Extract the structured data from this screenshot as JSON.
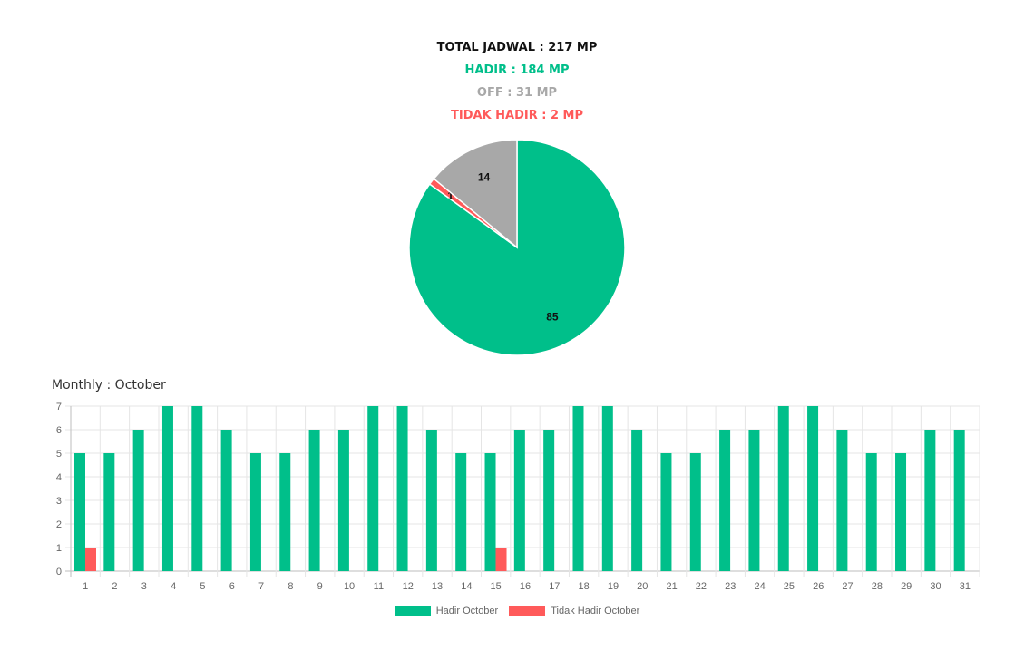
{
  "summary": {
    "total": "TOTAL JADWAL : 217 MP",
    "hadir": "HADIR : 184 MP",
    "off": "OFF : 31 MP",
    "tidak_hadir": "TIDAK HADIR : 2 MP"
  },
  "colors": {
    "hadir": "#00bf8a",
    "off": "#a8a8a8",
    "tidak_hadir": "#ff5a5a",
    "grid": "#e5e5e5",
    "tick": "#666666"
  },
  "monthly_title": "Monthly : October",
  "chart_data": [
    {
      "type": "pie",
      "labels": [
        "",
        "",
        ""
      ],
      "slices": [
        {
          "key": "hadir",
          "value": 85,
          "label": "85"
        },
        {
          "key": "tidak_hadir",
          "value": 1,
          "label": "1"
        },
        {
          "key": "off",
          "value": 14,
          "label": "14"
        }
      ]
    },
    {
      "type": "bar",
      "title": "Monthly : October",
      "categories": [
        "1",
        "2",
        "3",
        "4",
        "5",
        "6",
        "7",
        "8",
        "9",
        "10",
        "11",
        "12",
        "13",
        "14",
        "15",
        "16",
        "17",
        "18",
        "19",
        "20",
        "21",
        "22",
        "23",
        "24",
        "25",
        "26",
        "27",
        "28",
        "29",
        "30",
        "31"
      ],
      "ylim": [
        0,
        7
      ],
      "yticks": [
        "0",
        "1",
        "2",
        "3",
        "4",
        "5",
        "6",
        "7"
      ],
      "grid": true,
      "legend_position": "bottom",
      "series": [
        {
          "name": "Hadir October",
          "color_key": "hadir",
          "values": [
            5,
            5,
            6,
            7,
            7,
            6,
            5,
            5,
            6,
            6,
            7,
            7,
            6,
            5,
            5,
            6,
            6,
            7,
            7,
            6,
            5,
            5,
            6,
            6,
            7,
            7,
            6,
            5,
            5,
            6,
            6
          ]
        },
        {
          "name": "Tidak Hadir October",
          "color_key": "tidak_hadir",
          "values": [
            1,
            0,
            0,
            0,
            0,
            0,
            0,
            0,
            0,
            0,
            0,
            0,
            0,
            0,
            1,
            0,
            0,
            0,
            0,
            0,
            0,
            0,
            0,
            0,
            0,
            0,
            0,
            0,
            0,
            0,
            0
          ]
        }
      ]
    }
  ]
}
